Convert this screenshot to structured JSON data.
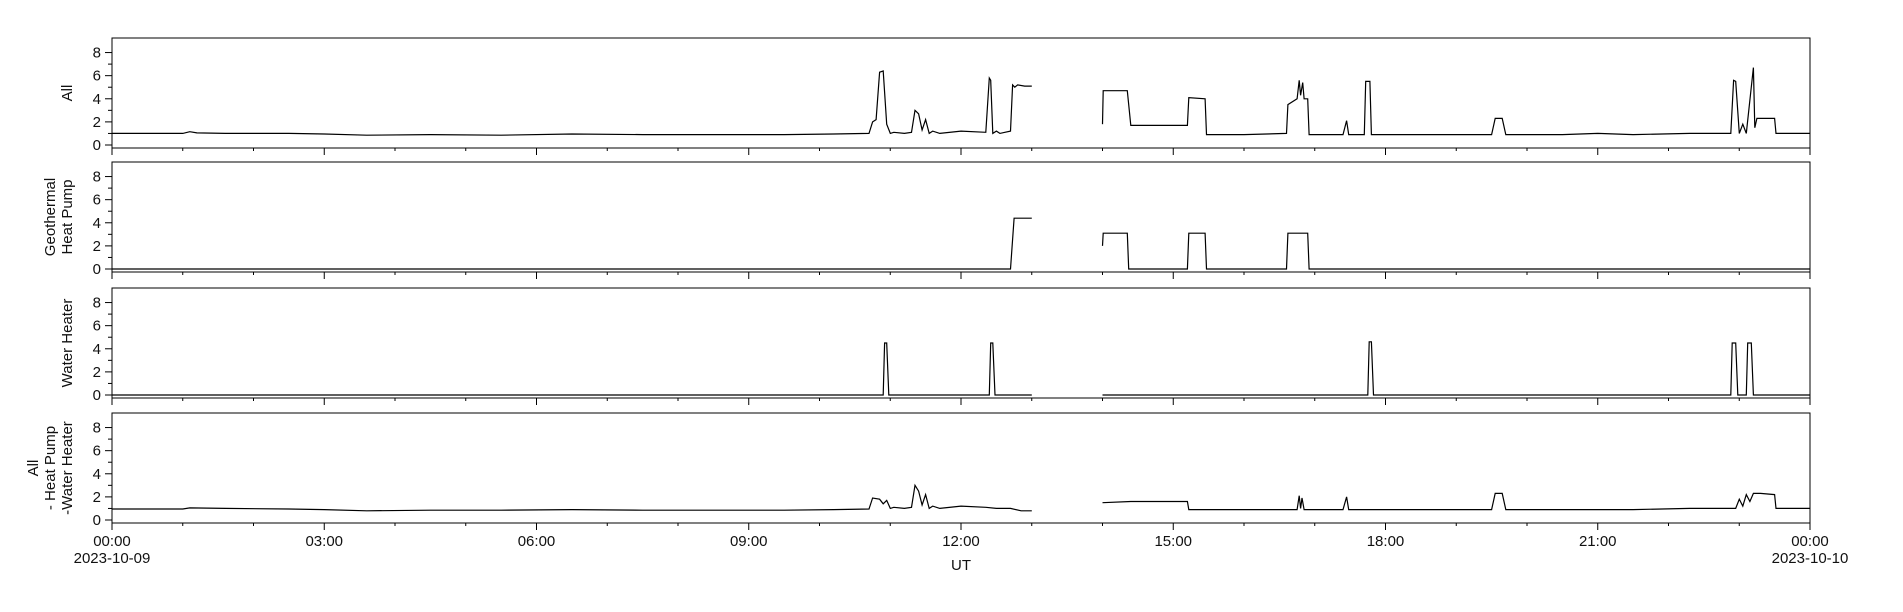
{
  "chart_data": {
    "type": "line",
    "xlabel": "UT",
    "x_ticks": [
      "00:00",
      "03:00",
      "06:00",
      "09:00",
      "12:00",
      "15:00",
      "18:00",
      "21:00",
      "00:00"
    ],
    "x_start_date": "2023-10-09",
    "x_end_date": "2023-10-10",
    "x_range_hours": [
      0,
      24
    ],
    "ylim": [
      0,
      9
    ],
    "y_ticks": [
      "0",
      "2",
      "4",
      "6",
      "8"
    ],
    "data_gap_hours": [
      13.0,
      14.0
    ],
    "line_color": "#000000",
    "panels": [
      {
        "ylabel_lines": [
          "All"
        ],
        "x": [
          0,
          0.8,
          1.0,
          1.1,
          1.2,
          1.6,
          2.0,
          2.5,
          3.0,
          3.6,
          4.5,
          5.5,
          6.5,
          7.5,
          8.5,
          9.5,
          10.2,
          10.7,
          10.75,
          10.8,
          10.85,
          10.9,
          10.95,
          11.0,
          11.05,
          11.2,
          11.3,
          11.35,
          11.4,
          11.45,
          11.5,
          11.55,
          11.6,
          11.7,
          12.0,
          12.35,
          12.4,
          12.42,
          12.45,
          12.5,
          12.55,
          12.62,
          12.7,
          12.73,
          12.76,
          12.8,
          12.9,
          12.98,
          13.0,
          14.0,
          14.01,
          14.35,
          14.4,
          15.2,
          15.22,
          15.45,
          15.47,
          16.0,
          16.6,
          16.62,
          16.75,
          16.78,
          16.8,
          16.83,
          16.85,
          16.9,
          16.92,
          17.4,
          17.45,
          17.48,
          17.5,
          17.7,
          17.72,
          17.78,
          17.8,
          18.5,
          19.5,
          19.55,
          19.65,
          19.7,
          20.5,
          21.0,
          21.5,
          22.3,
          22.88,
          22.92,
          22.95,
          23.0,
          23.05,
          23.1,
          23.2,
          23.22,
          23.25,
          23.3,
          23.5,
          23.52,
          24.0
        ],
        "y": [
          1.0,
          1.0,
          1.0,
          1.15,
          1.05,
          1.0,
          1.0,
          1.0,
          0.95,
          0.85,
          0.9,
          0.85,
          0.95,
          0.9,
          0.9,
          0.9,
          0.95,
          1.0,
          2.0,
          2.2,
          6.3,
          6.4,
          1.8,
          1.0,
          1.1,
          1.0,
          1.1,
          3.0,
          2.7,
          1.3,
          2.2,
          1.0,
          1.2,
          1.0,
          1.2,
          1.1,
          5.8,
          5.6,
          1.0,
          1.2,
          1.0,
          1.1,
          1.2,
          5.2,
          5.0,
          5.2,
          5.1,
          5.1,
          5.1,
          1.8,
          4.7,
          4.7,
          1.7,
          1.7,
          4.1,
          4.0,
          0.9,
          0.9,
          1.0,
          3.5,
          4.0,
          5.6,
          4.3,
          5.4,
          4.0,
          4.0,
          0.9,
          0.9,
          2.1,
          0.9,
          0.9,
          0.9,
          5.5,
          5.5,
          0.9,
          0.9,
          0.9,
          2.3,
          2.3,
          0.9,
          0.9,
          1.0,
          0.9,
          1.0,
          1.0,
          5.6,
          5.5,
          1.0,
          1.8,
          1.0,
          6.7,
          1.5,
          2.3,
          2.3,
          2.3,
          1.0,
          1.0
        ]
      },
      {
        "ylabel_lines": [
          "Geothermal",
          "Heat Pump"
        ],
        "x": [
          0,
          12.7,
          12.75,
          12.78,
          13.0,
          14.0,
          14.01,
          14.35,
          14.37,
          15.2,
          15.22,
          15.45,
          15.47,
          16.6,
          16.62,
          16.9,
          16.92,
          24.0
        ],
        "y": [
          0,
          0,
          4.4,
          4.4,
          4.4,
          2.0,
          3.1,
          3.1,
          0,
          0,
          3.1,
          3.1,
          0,
          0,
          3.1,
          3.1,
          0,
          0
        ]
      },
      {
        "ylabel_lines": [
          "Water Heater"
        ],
        "x": [
          0,
          10.9,
          10.92,
          10.95,
          10.98,
          12.4,
          12.42,
          12.45,
          12.48,
          12.98,
          13.0,
          14.0,
          17.75,
          17.77,
          17.8,
          17.83,
          22.88,
          22.9,
          22.95,
          22.98,
          23.1,
          23.12,
          23.17,
          23.2,
          24.0
        ],
        "y": [
          0,
          0,
          4.5,
          4.5,
          0,
          0,
          4.5,
          4.5,
          0,
          0,
          0,
          0,
          0,
          4.6,
          4.6,
          0,
          0,
          4.5,
          4.5,
          0,
          0,
          4.5,
          4.5,
          0,
          0
        ]
      },
      {
        "ylabel_lines": [
          "All",
          "- Heat Pump",
          "-Water Heater"
        ],
        "x": [
          0,
          1.0,
          1.1,
          1.6,
          2.5,
          3.0,
          3.6,
          4.5,
          5.5,
          6.5,
          7.5,
          8.5,
          9.5,
          10.2,
          10.7,
          10.75,
          10.85,
          10.9,
          10.95,
          11.0,
          11.05,
          11.2,
          11.3,
          11.35,
          11.4,
          11.45,
          11.5,
          11.55,
          11.6,
          11.7,
          12.0,
          12.35,
          12.5,
          12.7,
          12.85,
          13.0,
          14.0,
          14.4,
          15.2,
          15.22,
          15.45,
          16.0,
          16.75,
          16.78,
          16.8,
          16.82,
          16.85,
          17.4,
          17.45,
          17.48,
          17.5,
          18.5,
          19.5,
          19.55,
          19.65,
          19.7,
          20.5,
          21.0,
          21.5,
          22.3,
          22.88,
          22.95,
          23.0,
          23.05,
          23.1,
          23.15,
          23.2,
          23.3,
          23.5,
          23.52,
          24.0
        ],
        "y": [
          0.95,
          0.95,
          1.05,
          1.0,
          0.95,
          0.9,
          0.8,
          0.85,
          0.85,
          0.9,
          0.85,
          0.85,
          0.85,
          0.9,
          0.95,
          1.9,
          1.8,
          1.4,
          1.7,
          1.0,
          1.1,
          1.0,
          1.1,
          3.0,
          2.5,
          1.3,
          2.2,
          1.0,
          1.2,
          1.0,
          1.2,
          1.1,
          1.0,
          1.0,
          0.8,
          0.8,
          1.5,
          1.6,
          1.6,
          0.9,
          0.9,
          0.9,
          0.9,
          2.1,
          1.0,
          1.9,
          0.9,
          0.9,
          2.0,
          0.9,
          0.9,
          0.9,
          0.9,
          2.3,
          2.3,
          0.9,
          0.9,
          0.9,
          0.9,
          1.0,
          1.0,
          1.0,
          1.8,
          1.2,
          2.2,
          1.6,
          2.3,
          2.3,
          2.2,
          1.0,
          1.0
        ]
      }
    ]
  }
}
